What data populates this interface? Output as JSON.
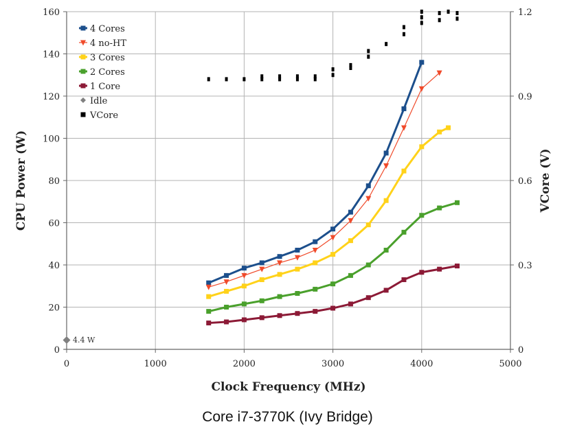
{
  "caption": "Core i7-3770K  (Ivy Bridge)",
  "chart_data": {
    "type": "line",
    "xlabel": "Clock Frequency (MHz)",
    "ylabel": "CPU Power (W)",
    "y2label": "VCore (V)",
    "xlim": [
      0,
      5000
    ],
    "ylim": [
      0,
      160
    ],
    "y2lim": [
      0,
      1.2
    ],
    "x_ticks": [
      "0",
      "1000",
      "2000",
      "3000",
      "4000",
      "5000"
    ],
    "y_ticks": [
      "0",
      "20",
      "40",
      "60",
      "80",
      "100",
      "120",
      "140",
      "160"
    ],
    "y2_ticks": [
      "0",
      "0.3",
      "0.6",
      "0.9",
      "1.2"
    ],
    "grid": true,
    "legend_position": "top-left",
    "annotation": "4.4 W",
    "series": [
      {
        "name": "4 Cores",
        "color": "#1c4f8c",
        "marker": "square",
        "width": 3,
        "x": [
          1600,
          1800,
          2000,
          2200,
          2400,
          2600,
          2800,
          3000,
          3200,
          3400,
          3600,
          3800,
          4000
        ],
        "y": [
          31.5,
          35,
          38.5,
          41,
          44,
          47,
          51,
          57,
          65,
          77.5,
          93,
          114,
          136
        ]
      },
      {
        "name": "4 no-HT",
        "color": "#f04a2a",
        "marker": "triangle-down",
        "width": 1.2,
        "x": [
          1600,
          1800,
          2000,
          2200,
          2400,
          2600,
          2800,
          3000,
          3200,
          3400,
          3600,
          3800,
          4000,
          4200
        ],
        "y": [
          29.5,
          32,
          35,
          38,
          41,
          43.5,
          47,
          53,
          61,
          71.5,
          87,
          105,
          123.5,
          131
        ]
      },
      {
        "name": "3 Cores",
        "color": "#ffd21a",
        "marker": "square",
        "width": 3,
        "x": [
          1600,
          1800,
          2000,
          2200,
          2400,
          2600,
          2800,
          3000,
          3200,
          3400,
          3600,
          3800,
          4000,
          4200,
          4300
        ],
        "y": [
          25,
          27.5,
          30,
          33,
          35.5,
          38,
          41,
          45,
          51.5,
          59,
          70.5,
          84.5,
          96,
          103,
          105
        ]
      },
      {
        "name": "2 Cores",
        "color": "#4aa02c",
        "marker": "square",
        "width": 3,
        "x": [
          1600,
          1800,
          2000,
          2200,
          2400,
          2600,
          2800,
          3000,
          3200,
          3400,
          3600,
          3800,
          4000,
          4200,
          4400
        ],
        "y": [
          18,
          20,
          21.5,
          23,
          25,
          26.5,
          28.5,
          31,
          35,
          40,
          47,
          55.5,
          63.5,
          67,
          69.5
        ]
      },
      {
        "name": "1 Core",
        "color": "#8c1a36",
        "marker": "square",
        "width": 3,
        "x": [
          1600,
          1800,
          2000,
          2200,
          2400,
          2600,
          2800,
          3000,
          3200,
          3400,
          3600,
          3800,
          4000,
          4200,
          4400
        ],
        "y": [
          12.5,
          13,
          14,
          15,
          16,
          17,
          18,
          19.5,
          21.5,
          24.5,
          28,
          33,
          36.5,
          38,
          39.5
        ]
      },
      {
        "name": "Idle",
        "color": "#808080",
        "marker": "diamond",
        "x": [
          0
        ],
        "y": [
          4.4
        ]
      },
      {
        "name": "VCore",
        "color": "#000000",
        "marker": "square",
        "axis": "y2",
        "x": [
          1600,
          1800,
          2000,
          2200,
          2200,
          2400,
          2400,
          2600,
          2600,
          2800,
          2800,
          3000,
          3000,
          3200,
          3200,
          3400,
          3400,
          3600,
          3800,
          3800,
          4000,
          4000,
          4000,
          4200,
          4200,
          4300,
          4400,
          4400
        ],
        "y": [
          0.96,
          0.96,
          0.96,
          0.96,
          0.97,
          0.96,
          0.97,
          0.96,
          0.97,
          0.96,
          0.97,
          0.975,
          0.995,
          1.0,
          1.01,
          1.04,
          1.06,
          1.085,
          1.12,
          1.145,
          1.16,
          1.18,
          1.2,
          1.17,
          1.195,
          1.2,
          1.175,
          1.195
        ]
      }
    ]
  }
}
